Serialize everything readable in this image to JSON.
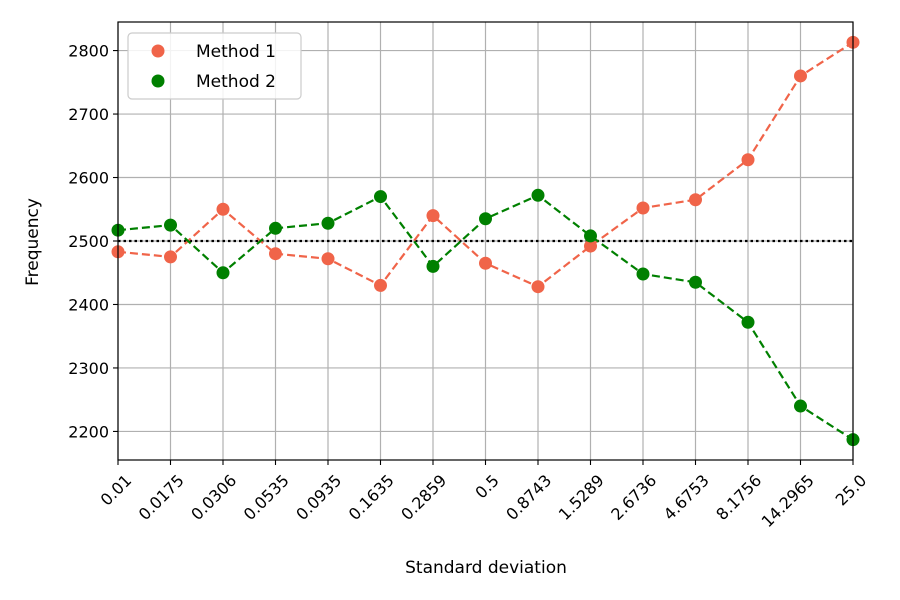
{
  "chart_data": {
    "type": "line",
    "title": "",
    "xlabel": "Standard deviation",
    "ylabel": "Frequency",
    "categories": [
      "0.01",
      "0.0175",
      "0.0306",
      "0.0535",
      "0.0935",
      "0.1635",
      "0.2859",
      "0.5",
      "0.8743",
      "1.5289",
      "2.6736",
      "4.6753",
      "8.1756",
      "14.2965",
      "25.0"
    ],
    "yticks": [
      2200,
      2300,
      2400,
      2500,
      2600,
      2700,
      2800
    ],
    "ylim": [
      2155,
      2845
    ],
    "grid": true,
    "legend_position": "top-left",
    "reference_line": {
      "y": 2500,
      "style": "dotted",
      "color": "#000000"
    },
    "series": [
      {
        "name": "Method 1",
        "color": "#f06449",
        "line_style": "dashed",
        "values": [
          2483,
          2475,
          2550,
          2480,
          2472,
          2430,
          2540,
          2465,
          2428,
          2492,
          2552,
          2565,
          2628,
          2760,
          2813
        ]
      },
      {
        "name": "Method 2",
        "color": "#008000",
        "line_style": "dashed",
        "values": [
          2517,
          2525,
          2450,
          2520,
          2528,
          2570,
          2460,
          2535,
          2572,
          2508,
          2448,
          2435,
          2372,
          2240,
          2187
        ]
      }
    ]
  }
}
